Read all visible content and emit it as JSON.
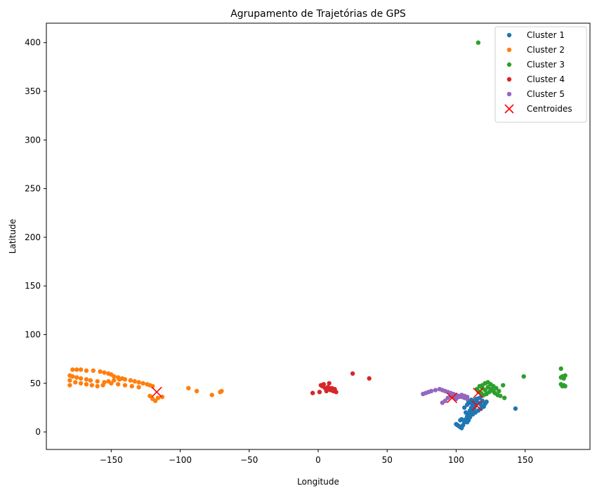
{
  "chart_data": {
    "type": "scatter",
    "title": "Agrupamento de Trajetórias de GPS",
    "xlabel": "Longitude",
    "ylabel": "Latitude",
    "xlim": [
      -197,
      197
    ],
    "ylim": [
      -18,
      420
    ],
    "xticks": [
      -150,
      -100,
      -50,
      0,
      50,
      100,
      150
    ],
    "yticks": [
      0,
      50,
      100,
      150,
      200,
      250,
      300,
      350,
      400
    ],
    "grid": false,
    "legend_position": "top-right",
    "series": [
      {
        "name": "Cluster 1",
        "color": "#1f77b4",
        "points": [
          [
            100,
            8
          ],
          [
            101,
            7
          ],
          [
            102,
            6
          ],
          [
            103,
            5
          ],
          [
            104,
            4
          ],
          [
            105,
            7
          ],
          [
            106,
            10
          ],
          [
            107,
            13
          ],
          [
            108,
            16
          ],
          [
            109,
            19
          ],
          [
            110,
            22
          ],
          [
            111,
            25
          ],
          [
            112,
            28
          ],
          [
            113,
            30
          ],
          [
            114,
            27
          ],
          [
            113,
            24
          ],
          [
            112,
            21
          ],
          [
            111,
            18
          ],
          [
            110,
            15
          ],
          [
            109,
            12
          ],
          [
            108,
            10
          ],
          [
            107,
            20
          ],
          [
            106,
            25
          ],
          [
            108,
            28
          ],
          [
            110,
            30
          ],
          [
            112,
            32
          ],
          [
            114,
            33
          ],
          [
            116,
            30
          ],
          [
            118,
            28
          ],
          [
            120,
            26
          ],
          [
            119,
            32
          ],
          [
            117,
            35
          ],
          [
            115,
            34
          ],
          [
            113,
            26
          ],
          [
            111,
            33
          ],
          [
            109,
            31
          ],
          [
            121,
            29
          ],
          [
            122,
            31
          ],
          [
            118,
            24
          ],
          [
            116,
            22
          ],
          [
            114,
            20
          ],
          [
            112,
            18
          ],
          [
            104,
            13
          ],
          [
            103,
            12
          ],
          [
            143,
            24
          ]
        ]
      },
      {
        "name": "Cluster 2",
        "color": "#ff7f0e",
        "points": [
          [
            -180,
            48
          ],
          [
            -178,
            64
          ],
          [
            -175,
            64
          ],
          [
            -172,
            64
          ],
          [
            -168,
            63
          ],
          [
            -163,
            63
          ],
          [
            -158,
            62
          ],
          [
            -155,
            61
          ],
          [
            -152,
            60
          ],
          [
            -150,
            59
          ],
          [
            -148,
            57
          ],
          [
            -145,
            56
          ],
          [
            -142,
            55
          ],
          [
            -140,
            54
          ],
          [
            -136,
            53
          ],
          [
            -133,
            52
          ],
          [
            -130,
            51
          ],
          [
            -127,
            50
          ],
          [
            -124,
            49
          ],
          [
            -122,
            48
          ],
          [
            -120,
            47
          ],
          [
            -180,
            58
          ],
          [
            -178,
            57
          ],
          [
            -175,
            56
          ],
          [
            -172,
            55
          ],
          [
            -168,
            54
          ],
          [
            -165,
            53
          ],
          [
            -160,
            52
          ],
          [
            -155,
            51
          ],
          [
            -150,
            50
          ],
          [
            -145,
            49
          ],
          [
            -140,
            48
          ],
          [
            -135,
            47
          ],
          [
            -130,
            46
          ],
          [
            -180,
            53
          ],
          [
            -176,
            51
          ],
          [
            -172,
            50
          ],
          [
            -168,
            49
          ],
          [
            -164,
            48
          ],
          [
            -160,
            47
          ],
          [
            -156,
            48
          ],
          [
            -152,
            52
          ],
          [
            -148,
            53
          ],
          [
            -144,
            54
          ],
          [
            -122,
            37
          ],
          [
            -120,
            34
          ],
          [
            -118,
            32
          ],
          [
            -116,
            35
          ],
          [
            -113,
            36
          ],
          [
            -94,
            45
          ],
          [
            -88,
            42
          ],
          [
            -77,
            38
          ],
          [
            -71,
            41
          ],
          [
            -70,
            42
          ]
        ]
      },
      {
        "name": "Cluster 3",
        "color": "#2ca02c",
        "points": [
          [
            116,
            400
          ],
          [
            115,
            44
          ],
          [
            117,
            47
          ],
          [
            119,
            48
          ],
          [
            121,
            50
          ],
          [
            123,
            51
          ],
          [
            125,
            49
          ],
          [
            127,
            47
          ],
          [
            129,
            45
          ],
          [
            126,
            43
          ],
          [
            124,
            41
          ],
          [
            122,
            39
          ],
          [
            120,
            38
          ],
          [
            118,
            40
          ],
          [
            116,
            42
          ],
          [
            128,
            40
          ],
          [
            130,
            38
          ],
          [
            132,
            37
          ],
          [
            134,
            48
          ],
          [
            135,
            35
          ],
          [
            131,
            42
          ],
          [
            119,
            45
          ],
          [
            121,
            43
          ],
          [
            123,
            46
          ],
          [
            125,
            44
          ],
          [
            127,
            42
          ],
          [
            149,
            57
          ],
          [
            176,
            65
          ],
          [
            177,
            57
          ],
          [
            178,
            55
          ],
          [
            179,
            58
          ],
          [
            176,
            56
          ],
          [
            177,
            47
          ],
          [
            178,
            48
          ],
          [
            179,
            47
          ],
          [
            176,
            49
          ]
        ]
      },
      {
        "name": "Cluster 4",
        "color": "#d62728",
        "points": [
          [
            -4,
            40
          ],
          [
            1,
            41
          ],
          [
            2,
            48
          ],
          [
            3,
            47
          ],
          [
            4,
            49
          ],
          [
            5,
            45
          ],
          [
            6,
            44
          ],
          [
            7,
            46
          ],
          [
            8,
            50
          ],
          [
            9,
            43
          ],
          [
            10,
            45
          ],
          [
            11,
            42
          ],
          [
            12,
            44
          ],
          [
            13,
            41
          ],
          [
            6,
            42
          ],
          [
            8,
            45
          ],
          [
            25,
            60
          ],
          [
            37,
            55
          ]
        ]
      },
      {
        "name": "Cluster 5",
        "color": "#9467bd",
        "points": [
          [
            76,
            39
          ],
          [
            78,
            40
          ],
          [
            80,
            41
          ],
          [
            82,
            42
          ],
          [
            85,
            43
          ],
          [
            88,
            44
          ],
          [
            90,
            43
          ],
          [
            92,
            42
          ],
          [
            94,
            41
          ],
          [
            96,
            40
          ],
          [
            98,
            39
          ],
          [
            100,
            38
          ],
          [
            102,
            37
          ],
          [
            104,
            36
          ],
          [
            106,
            35
          ],
          [
            108,
            34
          ],
          [
            90,
            30
          ],
          [
            92,
            32
          ],
          [
            94,
            35
          ],
          [
            96,
            37
          ],
          [
            98,
            36
          ],
          [
            100,
            34
          ],
          [
            102,
            36
          ],
          [
            104,
            38
          ],
          [
            106,
            37
          ],
          [
            108,
            36
          ]
        ]
      },
      {
        "name": "Centroides",
        "color": "#ff0000",
        "marker": "x",
        "points": [
          [
            -117,
            41
          ],
          [
            97,
            35
          ],
          [
            116,
            40
          ],
          [
            115,
            27
          ]
        ]
      }
    ]
  }
}
